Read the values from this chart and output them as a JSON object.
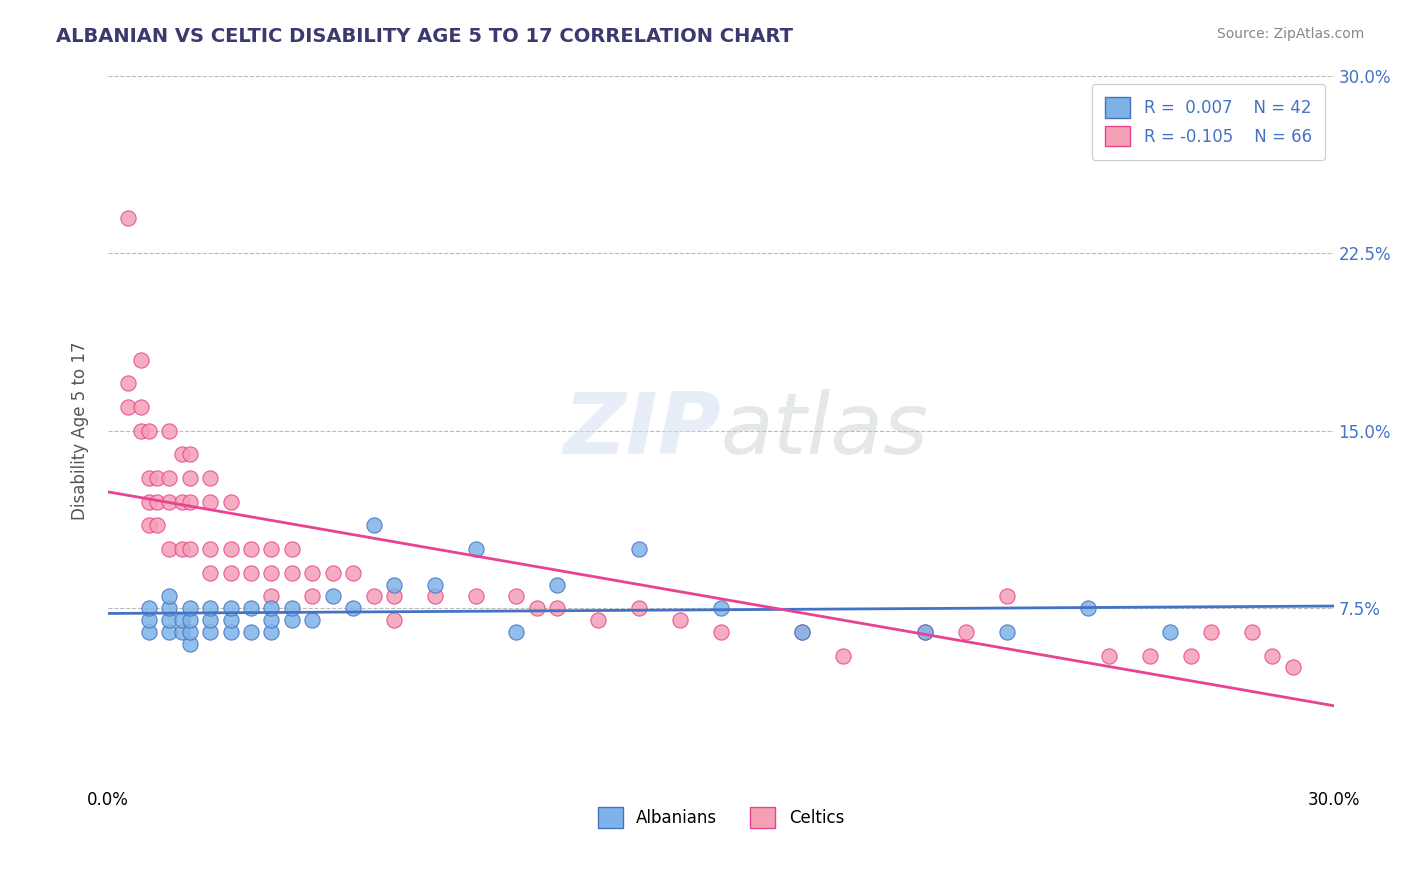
{
  "title": "ALBANIAN VS CELTIC DISABILITY AGE 5 TO 17 CORRELATION CHART",
  "source": "Source: ZipAtlas.com",
  "ylabel": "Disability Age 5 to 17",
  "xlim": [
    0.0,
    0.3
  ],
  "ylim": [
    0.0,
    0.3
  ],
  "ytick_labels": [
    "7.5%",
    "15.0%",
    "22.5%",
    "30.0%"
  ],
  "ytick_positions": [
    0.075,
    0.15,
    0.225,
    0.3
  ],
  "legend_R_albanian": "0.007",
  "legend_N_albanian": "42",
  "legend_R_celtic": "-0.105",
  "legend_N_celtic": "66",
  "color_albanian": "#7EB3E8",
  "color_celtic": "#F4A0B5",
  "color_albanian_line": "#4472C4",
  "color_celtic_line": "#E84393",
  "color_title": "#3A3A6E",
  "albanian_x": [
    0.01,
    0.01,
    0.01,
    0.015,
    0.015,
    0.015,
    0.015,
    0.018,
    0.018,
    0.02,
    0.02,
    0.02,
    0.02,
    0.025,
    0.025,
    0.025,
    0.03,
    0.03,
    0.03,
    0.035,
    0.035,
    0.04,
    0.04,
    0.04,
    0.045,
    0.045,
    0.05,
    0.055,
    0.06,
    0.065,
    0.07,
    0.08,
    0.09,
    0.1,
    0.11,
    0.13,
    0.15,
    0.17,
    0.2,
    0.22,
    0.24,
    0.26
  ],
  "albanian_y": [
    0.065,
    0.07,
    0.075,
    0.065,
    0.07,
    0.075,
    0.08,
    0.065,
    0.07,
    0.06,
    0.065,
    0.07,
    0.075,
    0.065,
    0.07,
    0.075,
    0.065,
    0.07,
    0.075,
    0.065,
    0.075,
    0.065,
    0.07,
    0.075,
    0.07,
    0.075,
    0.07,
    0.08,
    0.075,
    0.11,
    0.085,
    0.085,
    0.1,
    0.065,
    0.085,
    0.1,
    0.075,
    0.065,
    0.065,
    0.065,
    0.075,
    0.065
  ],
  "celtic_x": [
    0.005,
    0.005,
    0.005,
    0.008,
    0.008,
    0.008,
    0.01,
    0.01,
    0.01,
    0.01,
    0.012,
    0.012,
    0.012,
    0.015,
    0.015,
    0.015,
    0.015,
    0.018,
    0.018,
    0.018,
    0.02,
    0.02,
    0.02,
    0.02,
    0.025,
    0.025,
    0.025,
    0.025,
    0.03,
    0.03,
    0.03,
    0.035,
    0.035,
    0.04,
    0.04,
    0.04,
    0.045,
    0.045,
    0.05,
    0.05,
    0.055,
    0.06,
    0.065,
    0.07,
    0.07,
    0.08,
    0.09,
    0.1,
    0.105,
    0.11,
    0.12,
    0.13,
    0.14,
    0.15,
    0.17,
    0.18,
    0.2,
    0.21,
    0.22,
    0.245,
    0.255,
    0.265,
    0.27,
    0.28,
    0.285,
    0.29
  ],
  "celtic_y": [
    0.24,
    0.17,
    0.16,
    0.18,
    0.16,
    0.15,
    0.15,
    0.13,
    0.12,
    0.11,
    0.13,
    0.12,
    0.11,
    0.15,
    0.13,
    0.12,
    0.1,
    0.14,
    0.12,
    0.1,
    0.14,
    0.13,
    0.12,
    0.1,
    0.13,
    0.12,
    0.1,
    0.09,
    0.12,
    0.1,
    0.09,
    0.1,
    0.09,
    0.1,
    0.09,
    0.08,
    0.1,
    0.09,
    0.09,
    0.08,
    0.09,
    0.09,
    0.08,
    0.08,
    0.07,
    0.08,
    0.08,
    0.08,
    0.075,
    0.075,
    0.07,
    0.075,
    0.07,
    0.065,
    0.065,
    0.055,
    0.065,
    0.065,
    0.08,
    0.055,
    0.055,
    0.055,
    0.065,
    0.065,
    0.055,
    0.05
  ]
}
